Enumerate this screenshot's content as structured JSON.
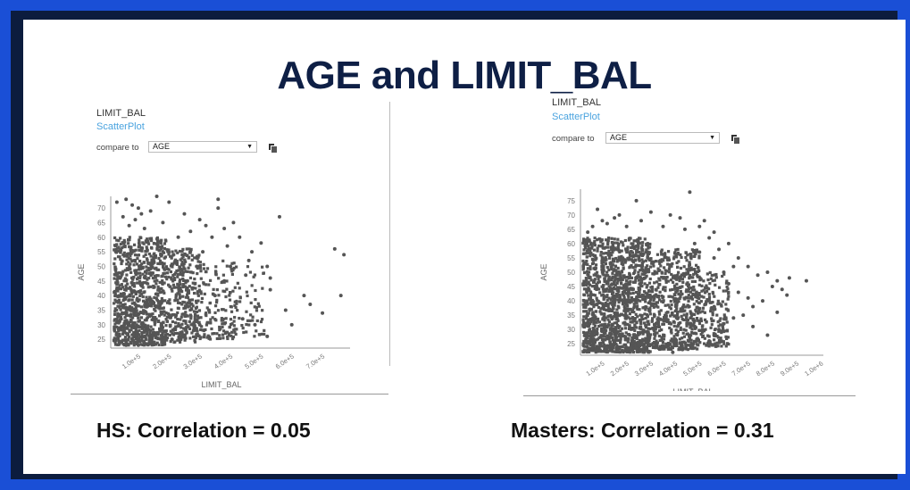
{
  "slide": {
    "title": "AGE and LIMIT_BAL",
    "captions": [
      "HS: Correlation = 0.05",
      "Masters: Correlation = 0.31"
    ]
  },
  "panels": [
    {
      "title": "LIMIT_BAL",
      "subtitle": "ScatterPlot",
      "compare_label": "compare to",
      "compare_value": "AGE"
    },
    {
      "title": "LIMIT_BAL",
      "subtitle": "ScatterPlot",
      "compare_label": "compare to",
      "compare_value": "AGE"
    }
  ],
  "chart_data": [
    {
      "type": "scatter",
      "xlabel": "LIMIT_BAL",
      "ylabel": "AGE",
      "xlim": [
        10000,
        790000
      ],
      "ylim": [
        22,
        74
      ],
      "x_ticks": [
        "1.0e+5",
        "2.0e+5",
        "3.0e+5",
        "4.0e+5",
        "5.0e+5",
        "6.0e+5",
        "7.0e+5"
      ],
      "x_tick_values": [
        100000,
        200000,
        300000,
        400000,
        500000,
        600000,
        700000
      ],
      "y_ticks": [
        "25",
        "30",
        "35",
        "40",
        "45",
        "50",
        "55",
        "60",
        "65",
        "70"
      ],
      "y_tick_values": [
        25,
        30,
        35,
        40,
        45,
        50,
        55,
        60,
        65,
        70
      ],
      "color": "#555555",
      "points": [
        [
          30000,
          72
        ],
        [
          60000,
          73
        ],
        [
          80000,
          71
        ],
        [
          100000,
          70
        ],
        [
          160000,
          74
        ],
        [
          200000,
          72
        ],
        [
          360000,
          73
        ],
        [
          360000,
          70
        ],
        [
          140000,
          69
        ],
        [
          250000,
          68
        ],
        [
          300000,
          66
        ],
        [
          320000,
          64
        ],
        [
          380000,
          63
        ],
        [
          560000,
          67
        ],
        [
          740000,
          56
        ],
        [
          770000,
          54
        ],
        [
          520000,
          50
        ],
        [
          530000,
          46
        ],
        [
          530000,
          42
        ],
        [
          450000,
          47
        ],
        [
          640000,
          40
        ],
        [
          660000,
          37
        ],
        [
          580000,
          35
        ],
        [
          600000,
          30
        ],
        [
          700000,
          34
        ],
        [
          760000,
          40
        ],
        [
          420000,
          38
        ],
        [
          440000,
          32
        ],
        [
          480000,
          30
        ],
        [
          520000,
          26
        ],
        [
          470000,
          55
        ],
        [
          430000,
          60
        ],
        [
          500000,
          58
        ],
        [
          410000,
          65
        ],
        [
          460000,
          52
        ],
        [
          390000,
          57
        ],
        [
          270000,
          62
        ],
        [
          230000,
          60
        ],
        [
          180000,
          65
        ],
        [
          120000,
          63
        ],
        [
          90000,
          66
        ],
        [
          50000,
          67
        ],
        [
          70000,
          64
        ],
        [
          110000,
          68
        ],
        [
          340000,
          60
        ],
        [
          310000,
          55
        ],
        [
          290000,
          50
        ],
        [
          260000,
          45
        ],
        [
          380000,
          45
        ],
        [
          400000,
          50
        ],
        [
          350000,
          40
        ],
        [
          330000,
          35
        ],
        [
          300000,
          30
        ],
        [
          280000,
          28
        ],
        [
          240000,
          27
        ],
        [
          210000,
          25
        ],
        [
          150000,
          24
        ],
        [
          100000,
          23
        ],
        [
          60000,
          23
        ],
        [
          40000,
          24
        ]
      ],
      "dense_regions": [
        {
          "x": [
            20000,
            190000
          ],
          "y": [
            23,
            60
          ],
          "density": 900
        },
        {
          "x": [
            190000,
            300000
          ],
          "y": [
            24,
            56
          ],
          "density": 350
        },
        {
          "x": [
            300000,
            420000
          ],
          "y": [
            25,
            52
          ],
          "density": 150
        },
        {
          "x": [
            420000,
            510000
          ],
          "y": [
            26,
            50
          ],
          "density": 50
        }
      ]
    },
    {
      "type": "scatter",
      "xlabel": "LIMIT_BAL",
      "ylabel": "AGE",
      "xlim": [
        10000,
        1010000
      ],
      "ylim": [
        21,
        79
      ],
      "x_ticks": [
        "1.0e+5",
        "2.0e+5",
        "3.0e+5",
        "4.0e+5",
        "5.0e+5",
        "6.0e+5",
        "7.0e+5",
        "8.0e+5",
        "9.0e+5",
        "1.0e+6"
      ],
      "x_tick_values": [
        100000,
        200000,
        300000,
        400000,
        500000,
        600000,
        700000,
        800000,
        900000,
        1000000
      ],
      "y_ticks": [
        "25",
        "30",
        "35",
        "40",
        "45",
        "50",
        "55",
        "60",
        "65",
        "70",
        "75"
      ],
      "y_tick_values": [
        25,
        30,
        35,
        40,
        45,
        50,
        55,
        60,
        65,
        70,
        75
      ],
      "color": "#555555",
      "points": [
        [
          460000,
          78
        ],
        [
          240000,
          75
        ],
        [
          80000,
          72
        ],
        [
          170000,
          70
        ],
        [
          300000,
          71
        ],
        [
          380000,
          70
        ],
        [
          420000,
          69
        ],
        [
          120000,
          67
        ],
        [
          200000,
          66
        ],
        [
          520000,
          68
        ],
        [
          560000,
          64
        ],
        [
          620000,
          60
        ],
        [
          660000,
          55
        ],
        [
          700000,
          52
        ],
        [
          740000,
          49
        ],
        [
          780000,
          50
        ],
        [
          800000,
          45
        ],
        [
          820000,
          47
        ],
        [
          840000,
          44
        ],
        [
          860000,
          42
        ],
        [
          870000,
          48
        ],
        [
          940000,
          47
        ],
        [
          760000,
          40
        ],
        [
          720000,
          38
        ],
        [
          680000,
          35
        ],
        [
          640000,
          34
        ],
        [
          600000,
          32
        ],
        [
          580000,
          30
        ],
        [
          560000,
          28
        ],
        [
          540000,
          26
        ],
        [
          720000,
          31
        ],
        [
          780000,
          28
        ],
        [
          820000,
          36
        ],
        [
          660000,
          43
        ],
        [
          700000,
          41
        ],
        [
          620000,
          46
        ],
        [
          600000,
          50
        ],
        [
          640000,
          52
        ],
        [
          560000,
          55
        ],
        [
          580000,
          58
        ],
        [
          540000,
          62
        ],
        [
          500000,
          66
        ],
        [
          440000,
          65
        ],
        [
          350000,
          66
        ],
        [
          260000,
          68
        ],
        [
          150000,
          69
        ],
        [
          100000,
          68
        ],
        [
          60000,
          66
        ],
        [
          40000,
          64
        ],
        [
          480000,
          60
        ],
        [
          500000,
          57
        ],
        [
          470000,
          24
        ],
        [
          430000,
          23
        ],
        [
          390000,
          22
        ]
      ],
      "dense_regions": [
        {
          "x": [
            20000,
            300000
          ],
          "y": [
            22,
            62
          ],
          "density": 1400
        },
        {
          "x": [
            300000,
            500000
          ],
          "y": [
            23,
            58
          ],
          "density": 600
        },
        {
          "x": [
            500000,
            620000
          ],
          "y": [
            24,
            50
          ],
          "density": 180
        }
      ]
    }
  ]
}
